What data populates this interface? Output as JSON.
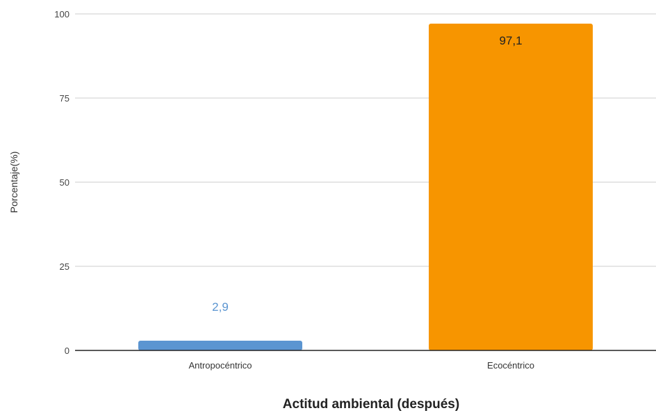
{
  "chart_data": {
    "type": "bar",
    "categories": [
      "Antropocéntrico",
      "Ecocéntrico"
    ],
    "values": [
      2.9,
      97.1
    ],
    "value_labels": [
      "2,9",
      "97,1"
    ],
    "colors": [
      "#5b95d1",
      "#f79500"
    ],
    "label_colors": [
      "#5b95d1",
      "#222222"
    ],
    "xlabel": "Actitud ambiental (después)",
    "ylabel": "Porcentaje(%)",
    "ylim": [
      0,
      100
    ],
    "yticks": [
      "0",
      "25",
      "50",
      "75",
      "100"
    ],
    "grid": true,
    "legend": "none"
  }
}
